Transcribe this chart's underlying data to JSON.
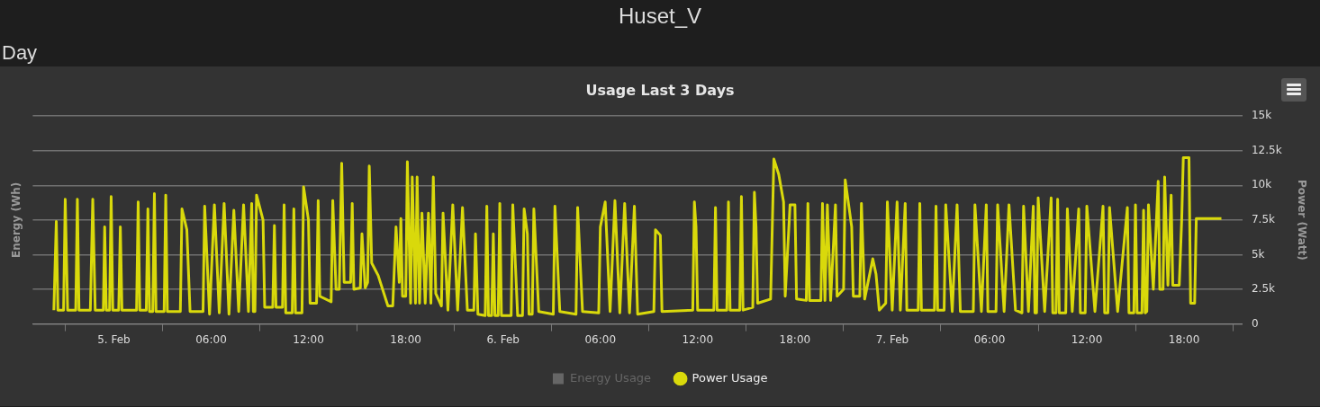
{
  "chart_data": {
    "type": "line",
    "title": "Usage Last 3 Days",
    "annotations": [
      "Huset_V",
      "Day"
    ],
    "ylabel": "Energy (Wh)",
    "y2label": "Power (Watt)",
    "xlim": [
      "--02-04T19:00",
      "--02-07T21:36"
    ],
    "xticks": [
      {
        "value": "--02-05T00:00",
        "label": "5. Feb"
      },
      {
        "value": "--02-05T06:00",
        "label": "06:00"
      },
      {
        "value": "--02-05T12:00",
        "label": "12:00"
      },
      {
        "value": "--02-05T18:00",
        "label": "18:00"
      },
      {
        "value": "--02-06T00:00",
        "label": "6. Feb"
      },
      {
        "value": "--02-06T06:00",
        "label": "06:00"
      },
      {
        "value": "--02-06T12:00",
        "label": "12:00"
      },
      {
        "value": "--02-06T18:00",
        "label": "18:00"
      },
      {
        "value": "--02-07T00:00",
        "label": "7. Feb"
      },
      {
        "value": "--02-07T06:00",
        "label": "06:00"
      },
      {
        "value": "--02-07T12:00",
        "label": "12:00"
      },
      {
        "value": "--02-07T18:00",
        "label": "18:00"
      }
    ],
    "y2lim": [
      0,
      15000
    ],
    "y2ticks": [
      0,
      {
        "value": 2500,
        "label": "2.5k"
      },
      {
        "value": 5000,
        "label": "5k"
      },
      {
        "value": 7500,
        "label": "7.5k"
      },
      {
        "value": 10000,
        "label": "10k"
      },
      {
        "value": 12500,
        "label": "12.5k"
      },
      {
        "value": 15000,
        "label": "15k"
      }
    ],
    "grid": "y",
    "legend": "bottom",
    "series": [
      {
        "name": "Energy Usage",
        "color": "#666666",
        "type": "bar",
        "axis": "y"
      },
      {
        "name": "Power Usage",
        "color": "#d9d90b",
        "axis": "y2",
        "x": [
          "--02-04T20:18",
          "--02-04T20:27",
          "--02-04T20:33",
          "--02-04T20:54",
          "--02-04T21:00",
          "--02-04T21:09",
          "--02-04T21:39",
          "--02-04T21:45",
          "--02-04T21:51",
          "--02-04T22:33",
          "--02-04T22:42",
          "--02-04T22:51",
          "--02-04T23:21",
          "--02-04T23:26",
          "--02-04T23:32",
          "--02-04T23:44",
          "--02-04T23:50",
          "--02-04T23:56",
          "--02-05T00:18",
          "--02-05T00:24",
          "--02-05T00:30",
          "--02-05T01:24",
          "--02-05T01:30",
          "--02-05T01:36",
          "--02-05T02:00",
          "--02-05T02:06",
          "--02-05T02:12",
          "--02-05T02:24",
          "--02-05T02:30",
          "--02-05T02:36",
          "--02-05T03:06",
          "--02-05T03:12",
          "--02-05T03:18",
          "--02-05T04:06",
          "--02-05T04:12",
          "--02-05T04:30",
          "--02-05T04:42",
          "--02-05T05:30",
          "--02-05T05:36",
          "--02-05T05:54",
          "--02-05T06:12",
          "--02-05T06:30",
          "--02-05T06:48",
          "--02-05T07:06",
          "--02-05T07:24",
          "--02-05T07:42",
          "--02-05T08:00",
          "--02-05T08:18",
          "--02-05T08:30",
          "--02-05T08:36",
          "--02-05T08:42",
          "--02-05T08:48",
          "--02-05T09:12",
          "--02-05T09:18",
          "--02-05T09:48",
          "--02-05T09:54",
          "--02-05T10:00",
          "--02-05T10:24",
          "--02-05T10:30",
          "--02-05T10:36",
          "--02-05T11:00",
          "--02-05T11:06",
          "--02-05T11:12",
          "--02-05T11:36",
          "--02-05T11:42",
          "--02-05T12:00",
          "--02-05T12:06",
          "--02-05T12:30",
          "--02-05T12:36",
          "--02-05T12:42",
          "--02-05T13:24",
          "--02-05T13:30",
          "--02-05T13:42",
          "--02-05T13:54",
          "--02-05T14:03",
          "--02-05T14:12",
          "--02-05T14:36",
          "--02-05T14:42",
          "--02-05T14:48",
          "--02-05T15:12",
          "--02-05T15:18",
          "--02-05T15:30",
          "--02-05T15:39",
          "--02-05T15:45",
          "--02-05T15:54",
          "--02-05T16:18",
          "--02-05T16:54",
          "--02-05T17:12",
          "--02-05T17:24",
          "--02-05T17:36",
          "--02-05T17:42",
          "--02-05T17:48",
          "--02-05T18:00",
          "--02-05T18:06",
          "--02-05T18:18",
          "--02-05T18:24",
          "--02-05T18:36",
          "--02-05T18:42",
          "--02-05T18:51",
          "--02-05T19:00",
          "--02-05T19:12",
          "--02-05T19:24",
          "--02-05T19:33",
          "--02-05T19:42",
          "--02-05T19:51",
          "--02-05T20:12",
          "--02-05T20:18",
          "--02-05T20:36",
          "--02-05T20:54",
          "--02-05T21:12",
          "--02-05T21:30",
          "--02-05T21:48",
          "--02-05T22:12",
          "--02-05T22:18",
          "--02-05T22:27",
          "--02-05T22:54",
          "--02-05T23:00",
          "--02-05T23:06",
          "--02-05T23:18",
          "--02-05T23:24",
          "--02-05T23:30",
          "--02-05T23:42",
          "--02-05T23:48",
          "--02-05T23:54",
          "--02-06T00:30",
          "--02-06T00:36",
          "--02-06T00:54",
          "--02-06T01:12",
          "--02-06T01:18",
          "--02-06T01:30",
          "--02-06T01:36",
          "--02-06T01:48",
          "--02-06T01:54",
          "--02-06T02:12",
          "--02-06T03:06",
          "--02-06T03:12",
          "--02-06T03:30",
          "--02-06T04:30",
          "--02-06T04:36",
          "--02-06T04:54",
          "--02-06T05:54",
          "--02-06T06:00",
          "--02-06T06:18",
          "--02-06T06:36",
          "--02-06T06:54",
          "--02-06T07:12",
          "--02-06T07:30",
          "--02-06T07:48",
          "--02-06T08:06",
          "--02-06T08:18",
          "--02-06T09:18",
          "--02-06T09:24",
          "--02-06T09:42",
          "--02-06T09:48",
          "--02-06T11:42",
          "--02-06T11:48",
          "--02-06T11:54",
          "--02-06T12:00",
          "--02-06T13:00",
          "--02-06T13:06",
          "--02-06T13:12",
          "--02-06T13:48",
          "--02-06T13:54",
          "--02-06T14:00",
          "--02-06T14:36",
          "--02-06T14:42",
          "--02-06T14:48",
          "--02-06T15:24",
          "--02-06T15:30",
          "--02-06T15:36",
          "--02-06T15:42",
          "--02-06T16:30",
          "--02-06T16:42",
          "--02-06T17:00",
          "--02-06T17:18",
          "--02-06T17:24",
          "--02-06T17:42",
          "--02-06T18:00",
          "--02-06T18:06",
          "--02-06T18:42",
          "--02-06T18:48",
          "--02-06T18:54",
          "--02-06T19:36",
          "--02-06T19:42",
          "--02-06T19:51",
          "--02-06T20:00",
          "--02-06T20:12",
          "--02-06T20:30",
          "--02-06T20:36",
          "--02-06T21:00",
          "--02-06T21:06",
          "--02-06T21:30",
          "--02-06T21:36",
          "--02-06T22:00",
          "--02-06T22:06",
          "--02-06T22:18",
          "--02-06T22:48",
          "--02-06T23:00",
          "--02-06T23:12",
          "--02-06T23:36",
          "--02-06T23:42",
          "--02-07T00:00",
          "--02-07T00:18",
          "--02-07T00:30",
          "--02-07T00:48",
          "--02-07T00:54",
          "--02-07T01:36",
          "--02-07T01:42",
          "--02-07T01:48",
          "--02-07T02:36",
          "--02-07T02:42",
          "--02-07T02:48",
          "--02-07T03:12",
          "--02-07T03:18",
          "--02-07T03:42",
          "--02-07T04:00",
          "--02-07T04:12",
          "--02-07T05:00",
          "--02-07T05:06",
          "--02-07T05:30",
          "--02-07T05:48",
          "--02-07T05:54",
          "--02-07T06:24",
          "--02-07T06:30",
          "--02-07T06:54",
          "--02-07T07:12",
          "--02-07T07:36",
          "--02-07T08:00",
          "--02-07T08:06",
          "--02-07T08:24",
          "--02-07T08:42",
          "--02-07T08:48",
          "--02-07T08:54",
          "--02-07T09:00",
          "--02-07T09:24",
          "--02-07T09:48",
          "--02-07T09:54",
          "--02-07T10:06",
          "--02-07T10:12",
          "--02-07T10:18",
          "--02-07T10:42",
          "--02-07T10:48",
          "--02-07T11:06",
          "--02-07T11:30",
          "--02-07T11:36",
          "--02-07T11:54",
          "--02-07T12:00",
          "--02-07T12:30",
          "--02-07T13:00",
          "--02-07T13:06",
          "--02-07T13:18",
          "--02-07T13:24",
          "--02-07T13:54",
          "--02-07T14:30",
          "--02-07T14:36",
          "--02-07T14:54",
          "--02-07T15:00",
          "--02-07T15:06",
          "--02-07T15:24",
          "--02-07T15:30",
          "--02-07T15:36",
          "--02-07T15:42",
          "--02-07T15:48",
          "--02-07T16:06",
          "--02-07T16:24",
          "--02-07T16:30",
          "--02-07T16:42",
          "--02-07T16:48",
          "--02-07T17:00",
          "--02-07T17:12",
          "--02-07T17:18",
          "--02-07T17:42",
          "--02-07T17:51",
          "--02-07T17:57",
          "--02-07T18:18",
          "--02-07T18:24",
          "--02-07T18:39",
          "--02-07T18:45",
          "--02-07T20:18"
        ],
        "values": [
          1000,
          7400,
          1000,
          1000,
          9000,
          1000,
          1000,
          9000,
          1000,
          1000,
          9000,
          1000,
          1000,
          7000,
          1000,
          1000,
          9200,
          1000,
          1000,
          7000,
          1000,
          1000,
          8800,
          1000,
          1000,
          8300,
          900,
          900,
          9400,
          900,
          900,
          9300,
          900,
          900,
          8300,
          6800,
          900,
          900,
          8500,
          700,
          8600,
          800,
          8700,
          700,
          8200,
          900,
          8600,
          900,
          8700,
          900,
          900,
          9300,
          7500,
          1200,
          1200,
          7100,
          1200,
          1200,
          8600,
          800,
          800,
          8300,
          800,
          800,
          9900,
          7500,
          1500,
          1500,
          8900,
          2000,
          1600,
          8900,
          2500,
          2500,
          11600,
          3000,
          3000,
          8700,
          2500,
          2600,
          6500,
          2600,
          3000,
          11400,
          4400,
          3500,
          1300,
          1300,
          7000,
          3000,
          7600,
          2000,
          2000,
          11700,
          1500,
          10600,
          1500,
          10600,
          1500,
          8000,
          1500,
          8000,
          1500,
          10600,
          2200,
          1300,
          8000,
          1000,
          8600,
          1000,
          8400,
          1000,
          1000,
          6500,
          700,
          600,
          8500,
          600,
          600,
          6500,
          600,
          600,
          8700,
          600,
          600,
          8600,
          600,
          600,
          8300,
          6500,
          700,
          700,
          8300,
          900,
          700,
          8500,
          900,
          700,
          8400,
          900,
          800,
          7000,
          8800,
          900,
          8900,
          800,
          8700,
          800,
          8500,
          700,
          900,
          6800,
          6400,
          900,
          1000,
          8800,
          7000,
          1000,
          1000,
          8400,
          1000,
          1000,
          8800,
          1000,
          1000,
          9200,
          1000,
          1200,
          9500,
          7000,
          1500,
          1800,
          11900,
          10800,
          8800,
          2000,
          8600,
          8600,
          1800,
          1700,
          8700,
          1700,
          1700,
          8700,
          1700,
          8600,
          1700,
          8600,
          2000,
          2500,
          10400,
          7000,
          2000,
          2000,
          8700,
          1800,
          4700,
          3600,
          1000,
          1500,
          8800,
          1000,
          8800,
          1000,
          8700,
          1000,
          1000,
          8700,
          1000,
          1000,
          8500,
          1000,
          1000,
          8600,
          900,
          8600,
          900,
          900,
          8600,
          900,
          8600,
          900,
          900,
          8600,
          900,
          8600,
          1000,
          800,
          8500,
          900,
          8500,
          800,
          800,
          9100,
          900,
          9100,
          800,
          800,
          9000,
          800,
          800,
          8300,
          900,
          8300,
          800,
          800,
          8500,
          900,
          8500,
          800,
          800,
          8400,
          900,
          8400,
          800,
          800,
          8600,
          800,
          800,
          8200,
          800,
          900,
          8600,
          2500,
          10300,
          2500,
          2500,
          10600,
          2800,
          9300,
          2800,
          2800,
          7500,
          12000,
          12000,
          1500,
          1500,
          7600,
          7600
        ]
      }
    ]
  }
}
